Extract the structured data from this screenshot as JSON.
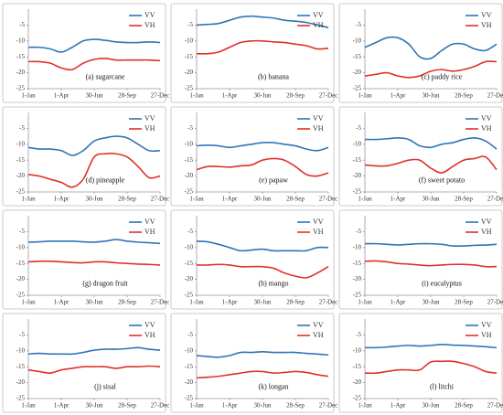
{
  "chart_data": [
    {
      "type": "line",
      "title": "(a) sugarcane",
      "x": [
        1,
        31,
        61,
        91,
        121,
        151,
        181,
        211,
        241,
        271,
        301,
        331,
        361
      ],
      "xlim": [
        1,
        361
      ],
      "xticks": [
        {
          "value": 1,
          "label": "1-Jan"
        },
        {
          "value": 91,
          "label": "1-Apr"
        },
        {
          "value": 181,
          "label": "30-Jun"
        },
        {
          "value": 271,
          "label": "28-Sep"
        },
        {
          "value": 361,
          "label": "27-Dec"
        }
      ],
      "ylim": [
        -25,
        0
      ],
      "yticks": [
        -25,
        -20,
        -15,
        -10,
        -5
      ],
      "legend": "upper right",
      "series": [
        {
          "name": "VV",
          "color": "#2e75b6",
          "values": [
            -12,
            -12,
            -12.5,
            -13.5,
            -12,
            -10,
            -9.5,
            -9.8,
            -10.3,
            -10.5,
            -10.5,
            -10.3,
            -10.5
          ]
        },
        {
          "name": "VH",
          "color": "#e0302b",
          "values": [
            -16.5,
            -16.5,
            -17,
            -18.5,
            -19,
            -17,
            -15.8,
            -15.5,
            -16,
            -16,
            -16,
            -16,
            -16.2
          ]
        }
      ]
    },
    {
      "type": "line",
      "title": "(b) banana",
      "x": [
        1,
        31,
        61,
        91,
        121,
        151,
        181,
        211,
        241,
        271,
        301,
        331,
        361
      ],
      "xlim": [
        1,
        361
      ],
      "xticks": [
        {
          "value": 1,
          "label": "1-Jan"
        },
        {
          "value": 91,
          "label": "1-Apr"
        },
        {
          "value": 181,
          "label": "30-Jun"
        },
        {
          "value": 271,
          "label": "28-Sep"
        },
        {
          "value": 361,
          "label": "27-Dec"
        }
      ],
      "ylim": [
        -25,
        0
      ],
      "yticks": [
        -25,
        -20,
        -15,
        -10,
        -5
      ],
      "legend": "upper right",
      "series": [
        {
          "name": "VV",
          "color": "#2e75b6",
          "values": [
            -5,
            -4.8,
            -4.5,
            -3.5,
            -2.5,
            -2.2,
            -2.5,
            -2.8,
            -3.5,
            -3.8,
            -4.2,
            -5,
            -5.8
          ]
        },
        {
          "name": "VH",
          "color": "#e0302b",
          "values": [
            -14,
            -14,
            -13.5,
            -12,
            -10.5,
            -10,
            -10,
            -10.3,
            -10.5,
            -11,
            -11.5,
            -12.5,
            -12.3
          ]
        }
      ]
    },
    {
      "type": "line",
      "title": "(c) paddy rice",
      "x": [
        1,
        31,
        61,
        91,
        121,
        151,
        181,
        211,
        241,
        271,
        301,
        331,
        361
      ],
      "xlim": [
        1,
        361
      ],
      "xticks": [
        {
          "value": 1,
          "label": "1-Jan"
        },
        {
          "value": 91,
          "label": "1-Apr"
        },
        {
          "value": 181,
          "label": "30-Jun"
        },
        {
          "value": 271,
          "label": "28-Sep"
        },
        {
          "value": 361,
          "label": "27-Dec"
        }
      ],
      "ylim": [
        -25,
        0
      ],
      "yticks": [
        -25,
        -20,
        -15,
        -10,
        -5
      ],
      "legend": "upper right",
      "series": [
        {
          "name": "VV",
          "color": "#2e75b6",
          "values": [
            -12,
            -10.5,
            -9,
            -9,
            -11,
            -15,
            -15.5,
            -13,
            -11,
            -11,
            -12.5,
            -13,
            -11
          ]
        },
        {
          "name": "VH",
          "color": "#e0302b",
          "values": [
            -21,
            -20.5,
            -20,
            -21,
            -21.5,
            -21,
            -19.5,
            -19,
            -19.5,
            -19,
            -18,
            -16.5,
            -16.5
          ]
        }
      ]
    },
    {
      "type": "line",
      "title": "(d) pineapple",
      "x": [
        1,
        31,
        61,
        91,
        121,
        151,
        181,
        211,
        241,
        271,
        301,
        331,
        361
      ],
      "xlim": [
        1,
        361
      ],
      "xticks": [
        {
          "value": 1,
          "label": "1-Jan"
        },
        {
          "value": 91,
          "label": "1-Apr"
        },
        {
          "value": 181,
          "label": "30-Jun"
        },
        {
          "value": 271,
          "label": "28-Sep"
        },
        {
          "value": 361,
          "label": "27-Dec"
        }
      ],
      "ylim": [
        -25,
        0
      ],
      "yticks": [
        -25,
        -20,
        -15,
        -10,
        -5
      ],
      "legend": "upper right",
      "series": [
        {
          "name": "VV",
          "color": "#2e75b6",
          "values": [
            -11,
            -11.5,
            -11.5,
            -12,
            -13.5,
            -12,
            -9,
            -8,
            -7.5,
            -8,
            -10,
            -12,
            -12
          ]
        },
        {
          "name": "VH",
          "color": "#e0302b",
          "values": [
            -19.5,
            -20,
            -21,
            -22,
            -23.5,
            -21,
            -14,
            -13,
            -13,
            -14,
            -17,
            -20.5,
            -20
          ]
        }
      ]
    },
    {
      "type": "line",
      "title": "(e) papaw",
      "x": [
        1,
        31,
        61,
        91,
        121,
        151,
        181,
        211,
        241,
        271,
        301,
        331,
        361
      ],
      "xlim": [
        1,
        361
      ],
      "xticks": [
        {
          "value": 1,
          "label": "1-Jan"
        },
        {
          "value": 91,
          "label": "1-Apr"
        },
        {
          "value": 181,
          "label": "30-Jun"
        },
        {
          "value": 271,
          "label": "28-Sep"
        },
        {
          "value": 361,
          "label": "27-Dec"
        }
      ],
      "ylim": [
        -25,
        0
      ],
      "yticks": [
        -25,
        -20,
        -15,
        -10,
        -5
      ],
      "legend": "upper right",
      "series": [
        {
          "name": "VV",
          "color": "#2e75b6",
          "values": [
            -10.5,
            -10.3,
            -10.5,
            -11,
            -10.5,
            -10,
            -9.5,
            -9.5,
            -10,
            -10.5,
            -11.5,
            -12,
            -11
          ]
        },
        {
          "name": "VH",
          "color": "#e0302b",
          "values": [
            -18,
            -17,
            -17,
            -17.2,
            -16.8,
            -16.5,
            -15,
            -14.5,
            -15,
            -17,
            -19.5,
            -20,
            -19
          ]
        }
      ]
    },
    {
      "type": "line",
      "title": "(f) sweet potato",
      "x": [
        1,
        31,
        61,
        91,
        121,
        151,
        181,
        211,
        241,
        271,
        301,
        331,
        361
      ],
      "xlim": [
        1,
        361
      ],
      "xticks": [
        {
          "value": 1,
          "label": "1-Jan"
        },
        {
          "value": 91,
          "label": "1-Apr"
        },
        {
          "value": 181,
          "label": "30-Jun"
        },
        {
          "value": 271,
          "label": "28-Sep"
        },
        {
          "value": 361,
          "label": "27-Dec"
        }
      ],
      "ylim": [
        -25,
        0
      ],
      "yticks": [
        -25,
        -20,
        -15,
        -10,
        -5
      ],
      "legend": "upper right",
      "series": [
        {
          "name": "VV",
          "color": "#2e75b6",
          "values": [
            -8.5,
            -8.5,
            -8.3,
            -8,
            -8.5,
            -10.5,
            -11,
            -10,
            -9.5,
            -8.5,
            -8,
            -9,
            -11.5
          ]
        },
        {
          "name": "VH",
          "color": "#e0302b",
          "values": [
            -16.5,
            -16.8,
            -16.8,
            -16,
            -15,
            -15,
            -17.5,
            -19,
            -17,
            -15,
            -14.5,
            -14,
            -18
          ]
        }
      ]
    },
    {
      "type": "line",
      "title": "(g) dragon fruit",
      "x": [
        1,
        31,
        61,
        91,
        121,
        151,
        181,
        211,
        241,
        271,
        301,
        331,
        361
      ],
      "xlim": [
        1,
        361
      ],
      "xticks": [
        {
          "value": 1,
          "label": "1-Jan"
        },
        {
          "value": 91,
          "label": "1-Apr"
        },
        {
          "value": 181,
          "label": "30-Jun"
        },
        {
          "value": 271,
          "label": "28-Sep"
        },
        {
          "value": 361,
          "label": "27-Dec"
        }
      ],
      "ylim": [
        -25,
        0
      ],
      "yticks": [
        -25,
        -20,
        -15,
        -10,
        -5
      ],
      "legend": "upper right",
      "series": [
        {
          "name": "VV",
          "color": "#2e75b6",
          "values": [
            -8.3,
            -8.2,
            -8,
            -8,
            -8,
            -8.2,
            -8.3,
            -8,
            -7.5,
            -8,
            -8.3,
            -8.5,
            -8.7
          ]
        },
        {
          "name": "VH",
          "color": "#e0302b",
          "values": [
            -14.5,
            -14.3,
            -14.3,
            -14.5,
            -14.7,
            -14.8,
            -14.5,
            -14.5,
            -14.8,
            -15,
            -15.2,
            -15.3,
            -15.5
          ]
        }
      ]
    },
    {
      "type": "line",
      "title": "(h) mango",
      "x": [
        1,
        31,
        61,
        91,
        121,
        151,
        181,
        211,
        241,
        271,
        301,
        331,
        361
      ],
      "xlim": [
        1,
        361
      ],
      "xticks": [
        {
          "value": 1,
          "label": "1-Jan"
        },
        {
          "value": 91,
          "label": "1-Apr"
        },
        {
          "value": 181,
          "label": "30-Jun"
        },
        {
          "value": 271,
          "label": "28-Sep"
        },
        {
          "value": 361,
          "label": "27-Dec"
        }
      ],
      "ylim": [
        -25,
        0
      ],
      "yticks": [
        -25,
        -20,
        -15,
        -10,
        -5
      ],
      "legend": "upper right",
      "series": [
        {
          "name": "VV",
          "color": "#2e75b6",
          "values": [
            -8,
            -8.2,
            -9,
            -10,
            -11,
            -10.8,
            -10.5,
            -11,
            -11,
            -11,
            -11,
            -10,
            -10
          ]
        },
        {
          "name": "VH",
          "color": "#e0302b",
          "values": [
            -15.5,
            -15.5,
            -15.3,
            -15.5,
            -16,
            -16,
            -16,
            -16.5,
            -18,
            -19,
            -19.5,
            -18,
            -16
          ]
        }
      ]
    },
    {
      "type": "line",
      "title": "(i) eucalyptus",
      "x": [
        1,
        31,
        61,
        91,
        121,
        151,
        181,
        211,
        241,
        271,
        301,
        331,
        361
      ],
      "xlim": [
        1,
        361
      ],
      "xticks": [
        {
          "value": 1,
          "label": "1-Jan"
        },
        {
          "value": 91,
          "label": "1-Apr"
        },
        {
          "value": 181,
          "label": "30-Jun"
        },
        {
          "value": 271,
          "label": "28-Sep"
        },
        {
          "value": 361,
          "label": "27-Dec"
        }
      ],
      "ylim": [
        -25,
        0
      ],
      "yticks": [
        -25,
        -20,
        -15,
        -10,
        -5
      ],
      "legend": "upper right",
      "series": [
        {
          "name": "VV",
          "color": "#2e75b6",
          "values": [
            -8.8,
            -8.8,
            -9,
            -9.2,
            -9,
            -8.8,
            -8.8,
            -9,
            -9.5,
            -9.5,
            -9.3,
            -9.2,
            -9
          ]
        },
        {
          "name": "VH",
          "color": "#e0302b",
          "values": [
            -14.3,
            -14.2,
            -14.5,
            -15,
            -15.2,
            -15.5,
            -15.7,
            -15.5,
            -15.3,
            -15.3,
            -15.5,
            -16,
            -16
          ]
        }
      ]
    },
    {
      "type": "line",
      "title": "(j) sisal",
      "x": [
        1,
        31,
        61,
        91,
        121,
        151,
        181,
        211,
        241,
        271,
        301,
        331,
        361
      ],
      "xlim": [
        1,
        361
      ],
      "xticks": [
        {
          "value": 1,
          "label": "1-Jan"
        },
        {
          "value": 91,
          "label": "1-Apr"
        },
        {
          "value": 181,
          "label": "30-Jun"
        },
        {
          "value": 271,
          "label": "28-Sep"
        },
        {
          "value": 361,
          "label": "27-Dec"
        }
      ],
      "ylim": [
        -25,
        0
      ],
      "yticks": [
        -25,
        -20,
        -15,
        -10,
        -5
      ],
      "legend": "upper right",
      "series": [
        {
          "name": "VV",
          "color": "#2e75b6",
          "values": [
            -11,
            -10.8,
            -11,
            -11,
            -11,
            -10.5,
            -9.8,
            -9.5,
            -9.5,
            -9.3,
            -9,
            -9.5,
            -9.8
          ]
        },
        {
          "name": "VH",
          "color": "#e0302b",
          "values": [
            -16,
            -16.5,
            -17,
            -16,
            -15.5,
            -15,
            -15,
            -15,
            -15.5,
            -15,
            -15,
            -14.8,
            -15
          ]
        }
      ]
    },
    {
      "type": "line",
      "title": "(k) longan",
      "x": [
        1,
        31,
        61,
        91,
        121,
        151,
        181,
        211,
        241,
        271,
        301,
        331,
        361
      ],
      "xlim": [
        1,
        361
      ],
      "xticks": [
        {
          "value": 1,
          "label": "1-Jan"
        },
        {
          "value": 91,
          "label": "1-Apr"
        },
        {
          "value": 181,
          "label": "30-Jun"
        },
        {
          "value": 271,
          "label": "28-Sep"
        },
        {
          "value": 361,
          "label": "27-Dec"
        }
      ],
      "ylim": [
        -25,
        0
      ],
      "yticks": [
        -25,
        -20,
        -15,
        -10,
        -5
      ],
      "legend": "upper right",
      "series": [
        {
          "name": "VV",
          "color": "#2e75b6",
          "values": [
            -11.5,
            -11.8,
            -12,
            -11.5,
            -10.5,
            -10.5,
            -10.3,
            -10.5,
            -10.5,
            -10.5,
            -10.8,
            -11,
            -11.3
          ]
        },
        {
          "name": "VH",
          "color": "#e0302b",
          "values": [
            -18.5,
            -18.3,
            -18,
            -17.5,
            -17,
            -16.5,
            -16.5,
            -17,
            -16.8,
            -16.5,
            -16.8,
            -17.5,
            -18
          ]
        }
      ]
    },
    {
      "type": "line",
      "title": "(l) litchi",
      "x": [
        1,
        31,
        61,
        91,
        121,
        151,
        181,
        211,
        241,
        271,
        301,
        331,
        361
      ],
      "xlim": [
        1,
        361
      ],
      "xticks": [
        {
          "value": 1,
          "label": "1-Jan"
        },
        {
          "value": 91,
          "label": "1-Apr"
        },
        {
          "value": 181,
          "label": "30-Jun"
        },
        {
          "value": 271,
          "label": "28-Sep"
        },
        {
          "value": 361,
          "label": "27-Dec"
        }
      ],
      "ylim": [
        -25,
        0
      ],
      "yticks": [
        -25,
        -20,
        -15,
        -10,
        -5
      ],
      "legend": "upper right",
      "series": [
        {
          "name": "VV",
          "color": "#2e75b6",
          "values": [
            -9,
            -9,
            -8.8,
            -8.5,
            -8.3,
            -8.5,
            -8.3,
            -8,
            -8.2,
            -8.3,
            -8.5,
            -8.7,
            -9
          ]
        },
        {
          "name": "VH",
          "color": "#e0302b",
          "values": [
            -17,
            -17,
            -16.5,
            -16,
            -16,
            -16,
            -13.5,
            -13.3,
            -13.3,
            -14,
            -15,
            -16.5,
            -17
          ]
        }
      ]
    }
  ]
}
